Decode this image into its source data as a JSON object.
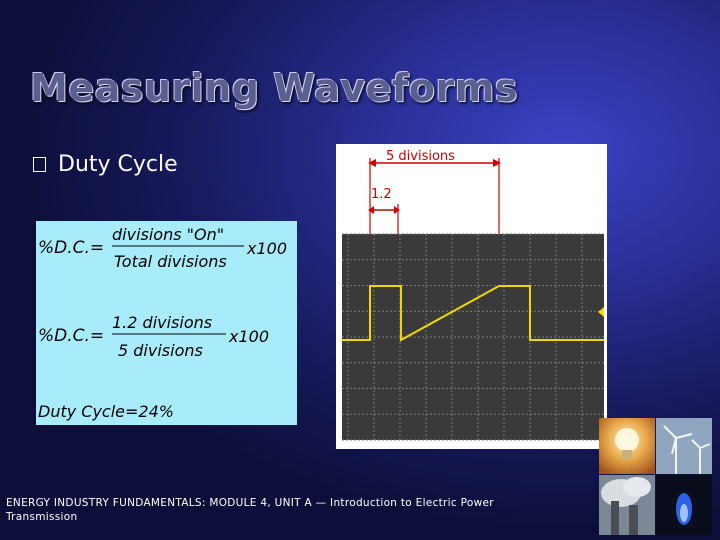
{
  "slide": {
    "title": "Measuring Waveforms",
    "bullet": "Duty Cycle",
    "footer": "ENERGY INDUSTRY FUNDAMENTALS:  MODULE 4, UNIT A — Introduction to Electric Power Transmission"
  },
  "formula": {
    "lhs": "%D.C.=",
    "numerator1": "divisions \"On\"",
    "denominator1": "Total  divisions",
    "times1": "x100",
    "numerator2": "1.2 divisions",
    "denominator2": "5 divisions",
    "times2": "x100",
    "result": "Duty Cycle=24%"
  },
  "scope": {
    "period_label": "5 divisions",
    "on_label": "1.2",
    "grid_color": "#7a7a7a",
    "trace_color": "#f0d800",
    "screen_color": "#3a3a3a"
  },
  "chart_data": {
    "type": "line",
    "period_divisions": 5,
    "on_divisions": 1.2,
    "duty_cycle_percent": 24
  },
  "photos": [
    "light-bulb",
    "wind-turbines",
    "smokestacks",
    "gas-flame"
  ]
}
